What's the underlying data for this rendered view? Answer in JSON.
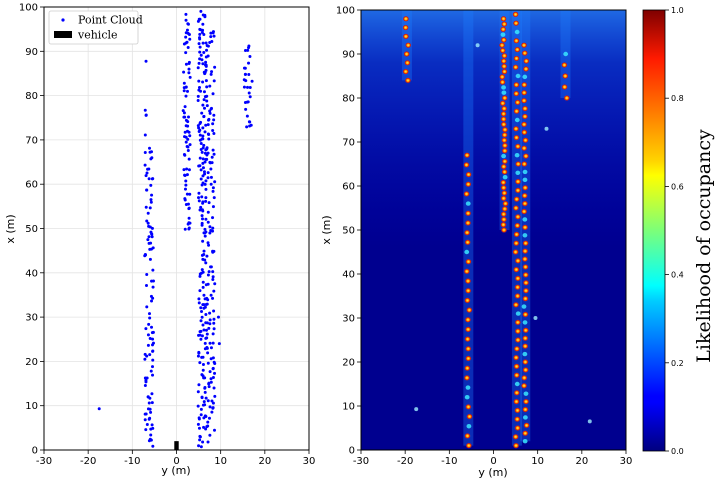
{
  "chart_data": [
    {
      "type": "scatter",
      "title": "",
      "xlabel": "y (m)",
      "ylabel": "x (m)",
      "xlim": [
        -30,
        30
      ],
      "ylim": [
        0,
        100
      ],
      "xticks": [
        "-30",
        "-20",
        "-10",
        "0",
        "10",
        "20",
        "30"
      ],
      "yticks": [
        "0",
        "10",
        "20",
        "30",
        "40",
        "50",
        "60",
        "70",
        "80",
        "90",
        "100"
      ],
      "grid": true,
      "legend_position": "top-left",
      "series": [
        {
          "name": "Point Cloud",
          "color": "#0000ff",
          "marker": "dot",
          "lines": [
            {
              "x_center": -6.2,
              "spread": 1.0,
              "y_from": 1,
              "y_to": 69,
              "step": 1.2
            },
            {
              "x_center": -7.0,
              "spread": 0.2,
              "y_from": 72,
              "y_to": 87,
              "step": 5
            },
            {
              "x_center": 2.3,
              "spread": 0.8,
              "y_from": 50,
              "y_to": 99,
              "step": 1.1
            },
            {
              "x_center": 5.8,
              "spread": 0.9,
              "y_from": 1,
              "y_to": 99,
              "step": 1.0
            },
            {
              "x_center": 7.6,
              "spread": 1.1,
              "y_from": 2,
              "y_to": 95,
              "step": 1.1
            },
            {
              "x_center": 16.3,
              "spread": 1.0,
              "y_from": 73,
              "y_to": 92,
              "step": 1.3
            }
          ],
          "points": [
            {
              "x": -17.5,
              "y": 9.3
            },
            {
              "x": 9.5,
              "y": 30.0
            },
            {
              "x": 9.7,
              "y": 24.0
            },
            {
              "x": 8.5,
              "y": 14.0
            }
          ]
        },
        {
          "name": "vehicle",
          "color": "#000000",
          "marker": "rect",
          "rect": {
            "x0": -0.5,
            "x1": 0.5,
            "y0": 0,
            "y1": 2
          }
        }
      ]
    },
    {
      "type": "heatmap",
      "title": "",
      "xlabel": "y (m)",
      "ylabel": "x (m)",
      "xlim": [
        -30,
        30
      ],
      "ylim": [
        0,
        100
      ],
      "xticks": [
        "-30",
        "-20",
        "-10",
        "0",
        "10",
        "20",
        "30"
      ],
      "yticks": [
        "0",
        "10",
        "20",
        "30",
        "40",
        "50",
        "60",
        "70",
        "80",
        "90",
        "100"
      ],
      "colorscale": "jet",
      "background_value": 0.05,
      "tracks": [
        {
          "x_center": -5.7,
          "x_drift": 0.15,
          "y_from": 1,
          "y_to": 69,
          "step": 2.2
        },
        {
          "x_center": -19.6,
          "x_drift": 0.0,
          "y_from": 84,
          "y_to": 99,
          "step": 2.0
        },
        {
          "x_center": 2.5,
          "x_drift": 0.35,
          "y_from": 50,
          "y_to": 99,
          "step": 1.2
        },
        {
          "x_center": 5.3,
          "x_drift": 0.0,
          "y_from": 1,
          "y_to": 99,
          "step": 2.0
        },
        {
          "x_center": 7.2,
          "x_drift": 0.0,
          "y_from": 2,
          "y_to": 92,
          "step": 1.8
        },
        {
          "x_center": 16.3,
          "x_drift": 0.0,
          "y_from": 80,
          "y_to": 92,
          "step": 2.5
        }
      ],
      "colorbar": {
        "label": "Likelihood of occupancy",
        "range": [
          0.0,
          1.0
        ],
        "ticks": [
          "0.0",
          "0.2",
          "0.4",
          "0.6",
          "0.8",
          "1.0"
        ]
      }
    }
  ]
}
